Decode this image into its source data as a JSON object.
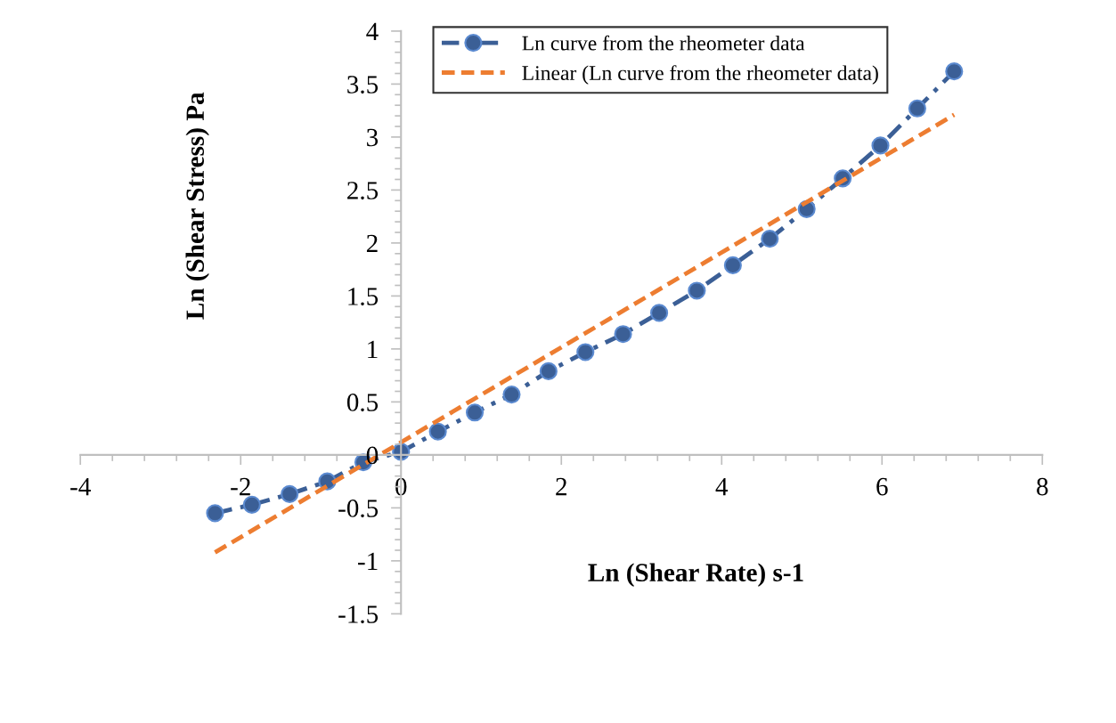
{
  "chart_data": {
    "type": "line",
    "xlabel": "Ln (Shear Rate) s-1",
    "ylabel": "Ln (Shear Stress) Pa",
    "xlim": [
      -4,
      8
    ],
    "xticks": [
      -4,
      -2,
      0,
      2,
      4,
      6,
      8
    ],
    "ylim": [
      -1.5,
      4
    ],
    "yticks": [
      -1.5,
      -1,
      -0.5,
      0,
      0.5,
      1,
      1.5,
      2,
      2.5,
      3,
      3.5,
      4
    ],
    "grid": false,
    "legend": "top right",
    "series": [
      {
        "name": "Ln curve from the rheometer data",
        "marker": "circle",
        "line_style": "dashdot",
        "color": "#3b5f96",
        "x": [
          -2.32,
          -1.86,
          -1.39,
          -0.92,
          -0.47,
          0,
          0.46,
          0.92,
          1.38,
          1.84,
          2.3,
          2.77,
          3.22,
          3.69,
          4.14,
          4.6,
          5.06,
          5.51,
          5.98,
          6.44,
          6.9
        ],
        "values": [
          -0.55,
          -0.47,
          -0.37,
          -0.25,
          -0.07,
          0.03,
          0.22,
          0.4,
          0.57,
          0.79,
          0.97,
          1.14,
          1.34,
          1.55,
          1.79,
          2.04,
          2.32,
          2.61,
          2.92,
          3.27,
          3.62
        ]
      },
      {
        "name": "Linear (Ln curve from the rheometer data)",
        "marker": "none",
        "line_style": "dashed",
        "color": "#ed7d31",
        "x": [
          -2.32,
          6.9
        ],
        "values": [
          -0.92,
          3.21
        ]
      }
    ]
  }
}
